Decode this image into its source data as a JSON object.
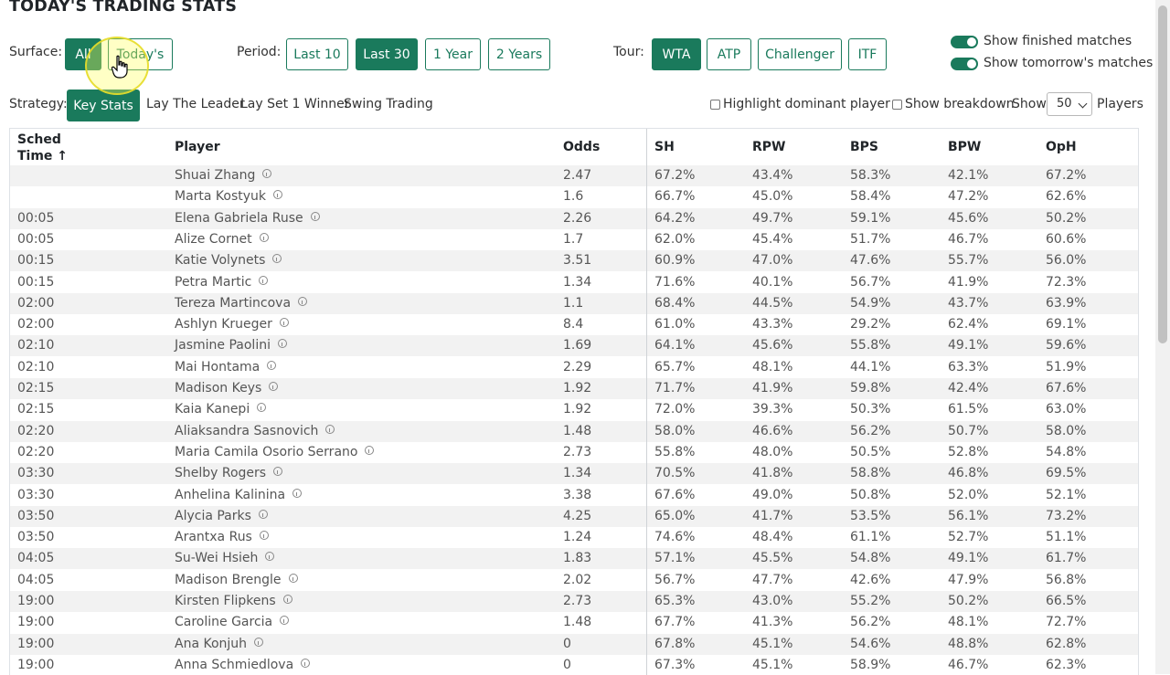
{
  "page": {
    "title": "TODAY'S TRADING STATS"
  },
  "filters": {
    "surface": {
      "label": "Surface:",
      "options": [
        "All",
        "Today's"
      ],
      "active": "All"
    },
    "period": {
      "label": "Period:",
      "options": [
        "Last 10",
        "Last 30",
        "1 Year",
        "2 Years"
      ],
      "active": "Last 30"
    },
    "tour": {
      "label": "Tour:",
      "options": [
        "WTA",
        "ATP",
        "Challenger",
        "ITF"
      ],
      "active": "WTA"
    },
    "toggles": [
      {
        "label": "Show finished matches",
        "on": true
      },
      {
        "label": "Show tomorrow's matches",
        "on": true
      }
    ]
  },
  "strategy": {
    "label": "Strategy:",
    "options": [
      "Key Stats",
      "Lay The Leader",
      "Lay Set 1 Winner",
      "Swing Trading"
    ],
    "active": "Key Stats"
  },
  "options": {
    "highlight_dominant": "Highlight dominant player",
    "show_breakdown": "Show breakdown",
    "show_label": "Show",
    "show_value": "50",
    "players_label": "Players"
  },
  "table": {
    "columns": {
      "time_line1": "Sched",
      "time_line2": "Time ↑",
      "player": "Player",
      "odds": "Odds",
      "sh": "SH",
      "rpw": "RPW",
      "bps": "BPS",
      "bpw": "BPW",
      "oph": "OpH"
    },
    "rows": [
      {
        "time": "",
        "player": "Shuai Zhang",
        "odds": "2.47",
        "sh": "67.2%",
        "rpw": "43.4%",
        "bps": "58.3%",
        "bpw": "42.1%",
        "oph": "67.2%"
      },
      {
        "time": "",
        "player": "Marta Kostyuk",
        "odds": "1.6",
        "sh": "66.7%",
        "rpw": "45.0%",
        "bps": "58.4%",
        "bpw": "47.2%",
        "oph": "62.6%"
      },
      {
        "time": "00:05",
        "player": "Elena Gabriela Ruse",
        "odds": "2.26",
        "sh": "64.2%",
        "rpw": "49.7%",
        "bps": "59.1%",
        "bpw": "45.6%",
        "oph": "50.2%"
      },
      {
        "time": "00:05",
        "player": "Alize Cornet",
        "odds": "1.7",
        "sh": "62.0%",
        "rpw": "45.4%",
        "bps": "51.7%",
        "bpw": "46.7%",
        "oph": "60.6%"
      },
      {
        "time": "00:15",
        "player": "Katie Volynets",
        "odds": "3.51",
        "sh": "60.9%",
        "rpw": "47.0%",
        "bps": "47.6%",
        "bpw": "55.7%",
        "oph": "56.0%"
      },
      {
        "time": "00:15",
        "player": "Petra Martic",
        "odds": "1.34",
        "sh": "71.6%",
        "rpw": "40.1%",
        "bps": "56.7%",
        "bpw": "41.9%",
        "oph": "72.3%"
      },
      {
        "time": "02:00",
        "player": "Tereza Martincova",
        "odds": "1.1",
        "sh": "68.4%",
        "rpw": "44.5%",
        "bps": "54.9%",
        "bpw": "43.7%",
        "oph": "63.9%"
      },
      {
        "time": "02:00",
        "player": "Ashlyn Krueger",
        "odds": "8.4",
        "sh": "61.0%",
        "rpw": "43.3%",
        "bps": "29.2%",
        "bpw": "62.4%",
        "oph": "69.1%"
      },
      {
        "time": "02:10",
        "player": "Jasmine Paolini",
        "odds": "1.69",
        "sh": "64.1%",
        "rpw": "45.6%",
        "bps": "55.8%",
        "bpw": "49.1%",
        "oph": "59.6%"
      },
      {
        "time": "02:10",
        "player": "Mai Hontama",
        "odds": "2.29",
        "sh": "65.7%",
        "rpw": "48.1%",
        "bps": "44.1%",
        "bpw": "63.3%",
        "oph": "51.9%"
      },
      {
        "time": "02:15",
        "player": "Madison Keys",
        "odds": "1.92",
        "sh": "71.7%",
        "rpw": "41.9%",
        "bps": "59.8%",
        "bpw": "42.4%",
        "oph": "67.6%"
      },
      {
        "time": "02:15",
        "player": "Kaia Kanepi",
        "odds": "1.92",
        "sh": "72.0%",
        "rpw": "39.3%",
        "bps": "50.3%",
        "bpw": "61.5%",
        "oph": "63.0%"
      },
      {
        "time": "02:20",
        "player": "Aliaksandra Sasnovich",
        "odds": "1.48",
        "sh": "58.0%",
        "rpw": "46.6%",
        "bps": "56.2%",
        "bpw": "50.7%",
        "oph": "58.0%"
      },
      {
        "time": "02:20",
        "player": "Maria Camila Osorio Serrano",
        "odds": "2.73",
        "sh": "55.8%",
        "rpw": "48.0%",
        "bps": "50.5%",
        "bpw": "52.8%",
        "oph": "54.8%"
      },
      {
        "time": "03:30",
        "player": "Shelby Rogers",
        "odds": "1.34",
        "sh": "70.5%",
        "rpw": "41.8%",
        "bps": "58.8%",
        "bpw": "46.8%",
        "oph": "69.5%"
      },
      {
        "time": "03:30",
        "player": "Anhelina Kalinina",
        "odds": "3.38",
        "sh": "67.6%",
        "rpw": "49.0%",
        "bps": "50.8%",
        "bpw": "52.0%",
        "oph": "52.1%"
      },
      {
        "time": "03:50",
        "player": "Alycia Parks",
        "odds": "4.25",
        "sh": "65.0%",
        "rpw": "41.7%",
        "bps": "53.5%",
        "bpw": "56.1%",
        "oph": "73.2%"
      },
      {
        "time": "03:50",
        "player": "Arantxa Rus",
        "odds": "1.24",
        "sh": "74.6%",
        "rpw": "48.4%",
        "bps": "61.1%",
        "bpw": "52.7%",
        "oph": "51.1%"
      },
      {
        "time": "04:05",
        "player": "Su-Wei Hsieh",
        "odds": "1.83",
        "sh": "57.1%",
        "rpw": "45.5%",
        "bps": "54.8%",
        "bpw": "49.1%",
        "oph": "61.7%"
      },
      {
        "time": "04:05",
        "player": "Madison Brengle",
        "odds": "2.02",
        "sh": "56.7%",
        "rpw": "47.7%",
        "bps": "42.6%",
        "bpw": "47.9%",
        "oph": "56.8%"
      },
      {
        "time": "19:00",
        "player": "Kirsten Flipkens",
        "odds": "2.73",
        "sh": "65.3%",
        "rpw": "43.0%",
        "bps": "55.2%",
        "bpw": "50.2%",
        "oph": "66.5%"
      },
      {
        "time": "19:00",
        "player": "Caroline Garcia",
        "odds": "1.48",
        "sh": "67.7%",
        "rpw": "41.3%",
        "bps": "56.2%",
        "bpw": "48.1%",
        "oph": "72.7%"
      },
      {
        "time": "19:00",
        "player": "Ana Konjuh",
        "odds": "0",
        "sh": "67.8%",
        "rpw": "45.1%",
        "bps": "54.6%",
        "bpw": "48.8%",
        "oph": "62.8%"
      },
      {
        "time": "19:00",
        "player": "Anna Schmiedlova",
        "odds": "0",
        "sh": "67.3%",
        "rpw": "45.1%",
        "bps": "58.9%",
        "bpw": "46.7%",
        "oph": "62.3%"
      }
    ]
  },
  "colors": {
    "accent": "#1a7a5c",
    "row_stripe": "#f2f2f2"
  }
}
